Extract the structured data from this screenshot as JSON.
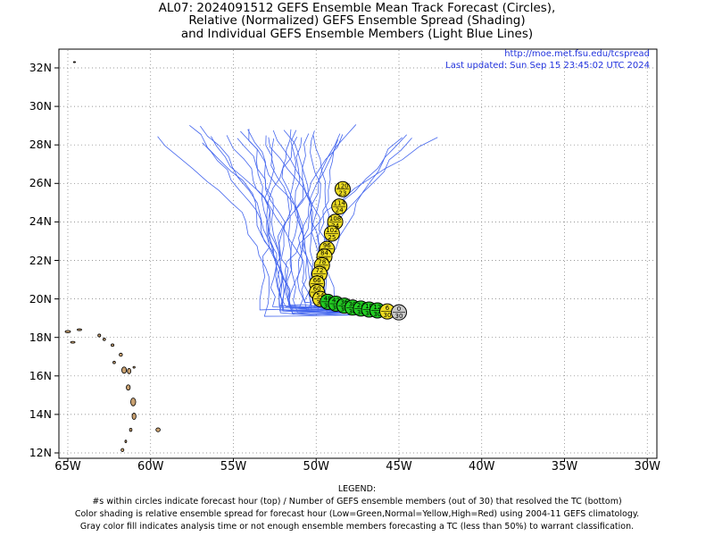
{
  "title": {
    "line1": "AL07: 2024091512 GEFS Ensemble Mean Track Forecast (Circles),",
    "line2": "Relative (Normalized) GEFS Ensemble Spread (Shading)",
    "line3": "and Individual GEFS Ensemble Members (Light Blue Lines)"
  },
  "credit": {
    "url": "http://moe.met.fsu.edu/tcspread",
    "updated": "Last updated: Sun Sep 15 23:45:02 UTC 2024"
  },
  "map": {
    "lon_range": [
      -65,
      -30
    ],
    "lat_range": [
      12,
      33
    ],
    "y_tick_labels": [
      "32N",
      "30N",
      "28N",
      "26N",
      "24N",
      "22N",
      "20N",
      "18N",
      "16N",
      "14N",
      "12N"
    ],
    "y_tick_values": [
      32,
      30,
      28,
      26,
      24,
      22,
      20,
      18,
      16,
      14,
      12
    ],
    "x_tick_labels": [
      "65W",
      "60W",
      "55W",
      "50W",
      "45W",
      "40W",
      "35W",
      "30W"
    ],
    "x_tick_values": [
      -65,
      -60,
      -55,
      -50,
      -45,
      -40,
      -35,
      -30
    ],
    "colors": {
      "green": "#22cc22",
      "yellow": "#eedd22",
      "gray": "#c8c8c8",
      "member": "#4466ee",
      "land": "#c8a070"
    }
  },
  "track": [
    {
      "hour": "0",
      "members": "30",
      "lon": -45.0,
      "lat": 19.3,
      "color": "gray"
    },
    {
      "hour": "6",
      "members": "30",
      "lon": -45.7,
      "lat": 19.35,
      "color": "yellow"
    },
    {
      "hour": "12",
      "members": "30",
      "lon": -46.3,
      "lat": 19.4,
      "color": "green"
    },
    {
      "hour": "18",
      "members": "30",
      "lon": -46.8,
      "lat": 19.45,
      "color": "green"
    },
    {
      "hour": "24",
      "members": "30",
      "lon": -47.3,
      "lat": 19.5,
      "color": "green"
    },
    {
      "hour": "30",
      "members": "30",
      "lon": -47.8,
      "lat": 19.55,
      "color": "green"
    },
    {
      "hour": "36",
      "members": "30",
      "lon": -48.3,
      "lat": 19.65,
      "color": "green"
    },
    {
      "hour": "42",
      "members": "30",
      "lon": -48.8,
      "lat": 19.75,
      "color": "green"
    },
    {
      "hour": "48",
      "members": "30",
      "lon": -49.3,
      "lat": 19.85,
      "color": "green"
    },
    {
      "hour": "54",
      "members": "30",
      "lon": -49.75,
      "lat": 20.0,
      "color": "yellow"
    },
    {
      "hour": "60",
      "members": "30",
      "lon": -49.95,
      "lat": 20.35,
      "color": "yellow"
    },
    {
      "hour": "66",
      "members": "30",
      "lon": -49.95,
      "lat": 20.8,
      "color": "yellow"
    },
    {
      "hour": "72",
      "members": "30",
      "lon": -49.8,
      "lat": 21.3,
      "color": "yellow"
    },
    {
      "hour": "78",
      "members": "30",
      "lon": -49.65,
      "lat": 21.75,
      "color": "yellow"
    },
    {
      "hour": "84",
      "members": "30",
      "lon": -49.5,
      "lat": 22.2,
      "color": "yellow"
    },
    {
      "hour": "96",
      "members": "27",
      "lon": -49.35,
      "lat": 22.6,
      "color": "yellow"
    },
    {
      "hour": "102",
      "members": "25",
      "lon": -49.05,
      "lat": 23.4,
      "color": "yellow"
    },
    {
      "hour": "108",
      "members": "24",
      "lon": -48.85,
      "lat": 24.0,
      "color": "yellow"
    },
    {
      "hour": "114",
      "members": "24",
      "lon": -48.6,
      "lat": 24.8,
      "color": "yellow"
    },
    {
      "hour": "120",
      "members": "23",
      "lon": -48.4,
      "lat": 25.7,
      "color": "yellow"
    }
  ],
  "legend": {
    "heading": "LEGEND:",
    "line1": "#s within circles indicate forecast hour (top) / Number of GEFS ensemble members (out of 30) that resolved the TC (bottom)",
    "line2": "Color shading is relative ensemble spread for forecast hour (Low=Green,Normal=Yellow,High=Red) using 2004-11 GEFS climatology.",
    "line3": "Gray color fill indicates analysis time or not enough ensemble members forecasting a TC (less than 50%) to warrant classification."
  }
}
